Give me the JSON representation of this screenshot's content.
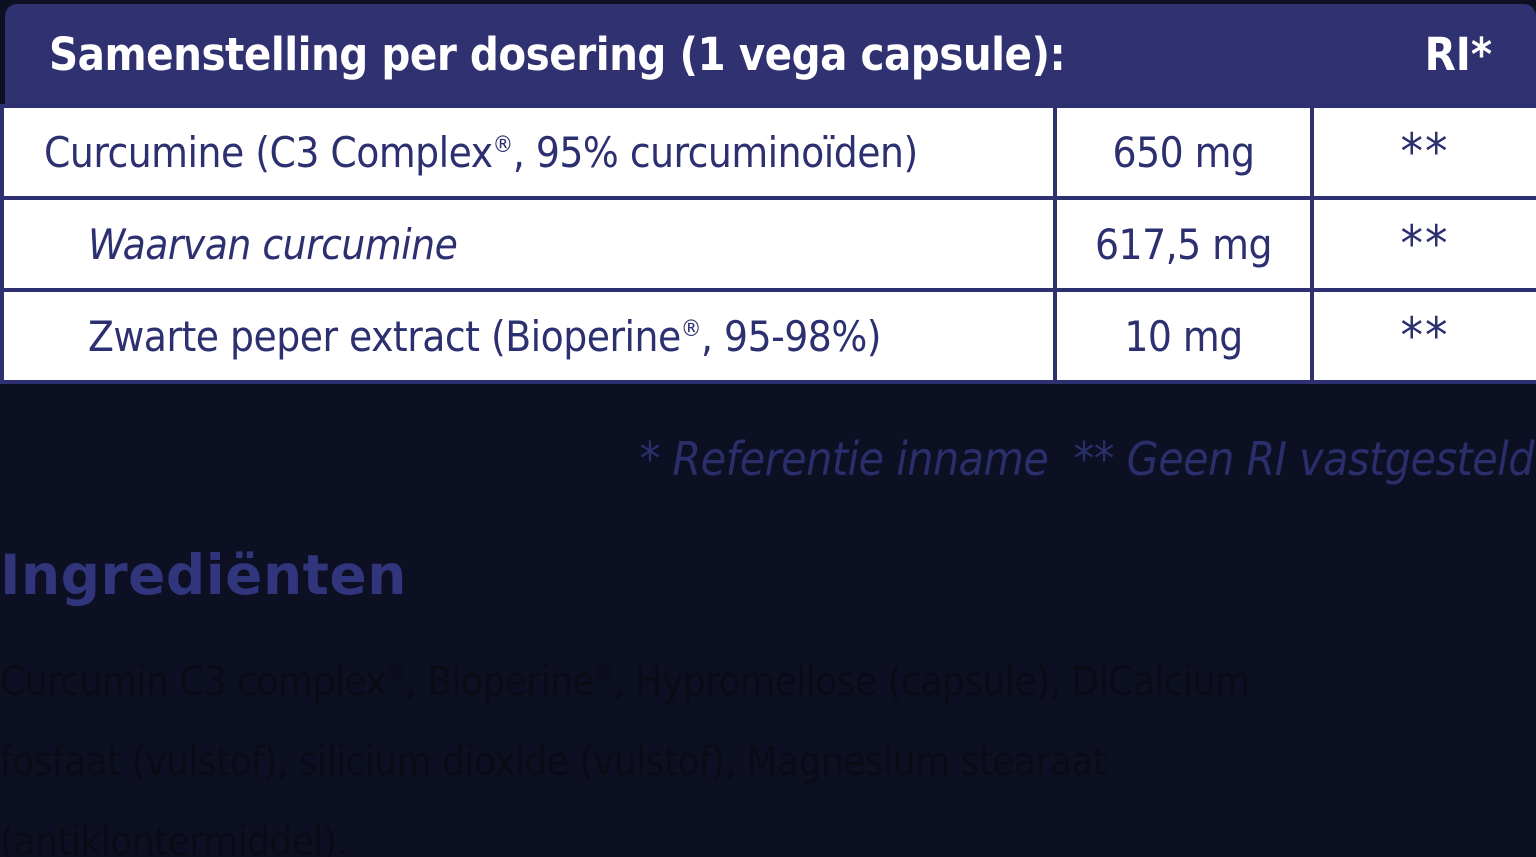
{
  "table": {
    "header": {
      "title": "Samenstelling per dosering (1 vega capsule):",
      "ri_label": "RI*"
    },
    "rows": [
      {
        "name": "Curcumine (C3 Complex®, 95% curcuminoïden)",
        "amount": "650 mg",
        "ri": "**"
      },
      {
        "name": "Waarvan curcumine",
        "amount": "617,5 mg",
        "ri": "**"
      },
      {
        "name": "Zwarte peper extract (Bioperine®, 95-98%)",
        "amount": "10 mg",
        "ri": "**"
      }
    ]
  },
  "footnote": "* Referentie inname  ** Geen RI vastgesteld",
  "ingredients": {
    "heading": "Ingrediënten",
    "lines": [
      "Curcumin C3 complex®, Bioperine®, Hypromellose (capsule), DiCalcium",
      "fosfaat (vulstof), silicium dioxide (vulstof), Magnesium stearaat",
      "(antiklontermiddel)."
    ]
  },
  "colors": {
    "header_bar": "#2f3170",
    "table_border": "#2e3170",
    "table_text": "#2d3070",
    "cell_background": "#ffffff",
    "page_background": "#0d0f23",
    "footnote_text": "#2a2e6a",
    "heading_text": "#31357b",
    "body_text": "#0a0b15"
  }
}
